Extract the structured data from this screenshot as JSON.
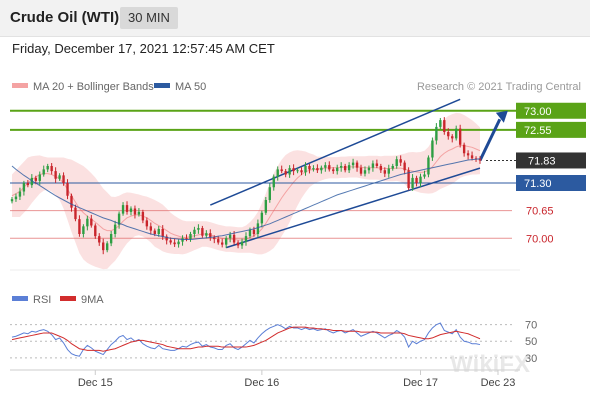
{
  "header": {
    "title": "Crude Oil (WTI)",
    "timeframe": "30 MIN"
  },
  "timestamp": "Friday, December 17, 2021 12:57:45 AM CET",
  "colors": {
    "candle_up": "#2e9e43",
    "candle_down": "#c9252c",
    "bollinger": "#f4a3a3",
    "ma50": "#2c5aa0",
    "resistance": "#5aa317",
    "support": "#2c5aa0",
    "minor": "#e06666",
    "rsi": "#5b7fd6",
    "rsi_ma": "#d22d2d",
    "channel": "#1e4a96"
  },
  "legend_top": [
    {
      "label": "MA 20 + Bollinger Bands",
      "color": "#f4a3a3"
    },
    {
      "label": "MA 50",
      "color": "#2c5aa0"
    }
  ],
  "credit": "Research © 2021 Trading Central",
  "legend_bottom": [
    {
      "label": "RSI",
      "color": "#5b7fd6"
    },
    {
      "label": "9MA",
      "color": "#d22d2d"
    }
  ],
  "watermark": "WikiFX",
  "chart_data": {
    "type": "candlestick",
    "ylim": [
      69.3,
      73.3
    ],
    "x_ticks": [
      "Dec 15",
      "Dec 16",
      "Dec 17",
      "Dec 23"
    ],
    "price_levels": [
      {
        "value": "73.00",
        "y": 73.0,
        "style": "resistance"
      },
      {
        "value": "72.55",
        "y": 72.55,
        "style": "resistance"
      },
      {
        "value": "71.83",
        "y": 71.83,
        "style": "last"
      },
      {
        "value": "71.30",
        "y": 71.3,
        "style": "support"
      },
      {
        "value": "70.65",
        "y": 70.65,
        "style": "minor"
      },
      {
        "value": "70.00",
        "y": 70.0,
        "style": "minor"
      }
    ],
    "closes": [
      70.92,
      70.98,
      71.1,
      71.3,
      71.25,
      71.42,
      71.35,
      71.5,
      71.62,
      71.7,
      71.58,
      71.4,
      71.48,
      71.3,
      71.0,
      70.72,
      70.45,
      70.1,
      70.28,
      70.46,
      70.3,
      70.05,
      69.9,
      69.72,
      69.88,
      70.1,
      70.32,
      70.58,
      70.78,
      70.62,
      70.7,
      70.56,
      70.62,
      70.42,
      70.28,
      70.18,
      70.1,
      70.22,
      70.04,
      69.95,
      69.9,
      69.86,
      69.92,
      70.0,
      69.98,
      70.1,
      70.2,
      70.24,
      70.06,
      70.12,
      70.02,
      69.98,
      69.9,
      69.85,
      70.0,
      70.08,
      69.9,
      69.83,
      69.92,
      70.05,
      70.2,
      70.1,
      70.35,
      70.6,
      70.9,
      71.2,
      71.45,
      71.62,
      71.58,
      71.5,
      71.65,
      71.58,
      71.6,
      71.55,
      71.7,
      71.62,
      71.65,
      71.6,
      71.66,
      71.72,
      71.62,
      71.58,
      71.66,
      71.7,
      71.6,
      71.72,
      71.78,
      71.66,
      71.52,
      71.6,
      71.66,
      71.76,
      71.7,
      71.6,
      71.52,
      71.64,
      71.7,
      71.86,
      71.78,
      71.6,
      71.18,
      71.42,
      71.3,
      71.45,
      71.5,
      71.9,
      72.3,
      72.62,
      72.78,
      72.5,
      72.4,
      72.35,
      72.58,
      72.2,
      72.0,
      71.95,
      71.88,
      71.86,
      71.83
    ],
    "ma50": [
      71.7,
      71.62,
      71.55,
      71.48,
      71.42,
      71.35,
      71.3,
      71.24,
      71.18,
      71.12,
      71.06,
      71.0,
      70.95,
      70.9,
      70.85,
      70.8,
      70.76,
      70.72,
      70.68,
      70.64,
      70.6,
      70.56,
      70.52,
      70.48,
      70.45,
      70.42,
      70.38,
      70.35,
      70.32,
      70.28,
      70.25,
      70.22,
      70.19,
      70.16,
      70.13,
      70.1,
      70.08,
      70.06,
      70.04,
      70.02,
      70.0,
      69.99,
      69.98,
      69.97,
      69.97,
      69.97,
      69.98,
      69.99,
      70.0,
      70.01,
      70.02,
      70.03,
      70.05,
      70.06,
      70.08,
      70.1,
      70.12,
      70.14,
      70.16,
      70.18,
      70.2,
      70.22,
      70.25,
      70.28,
      70.31,
      70.34,
      70.38,
      70.42,
      70.46,
      70.5,
      70.54,
      70.58,
      70.62,
      70.66,
      70.7,
      70.74,
      70.78,
      70.82,
      70.86,
      70.9,
      70.94,
      70.98,
      71.02,
      71.05,
      71.08,
      71.11,
      71.14,
      71.17,
      71.2,
      71.23,
      71.26,
      71.29,
      71.32,
      71.35,
      71.38,
      71.41,
      71.44,
      71.47,
      71.5,
      71.52,
      71.54,
      71.56,
      71.58,
      71.6,
      71.62,
      71.64,
      71.66,
      71.68,
      71.7,
      71.72,
      71.74,
      71.76,
      71.78,
      71.8,
      71.82,
      71.84,
      71.85,
      71.86,
      71.87
    ],
    "bollinger_mid": [
      71.0,
      71.05,
      71.1,
      71.2,
      71.3,
      71.38,
      71.44,
      71.5,
      71.52,
      71.52,
      71.5,
      71.45,
      71.4,
      71.3,
      71.15,
      71.0,
      70.85,
      70.7,
      70.6,
      70.52,
      70.45,
      70.38,
      70.3,
      70.22,
      70.18,
      70.18,
      70.22,
      70.3,
      70.4,
      70.48,
      70.52,
      70.55,
      70.55,
      70.52,
      70.48,
      70.42,
      70.35,
      70.3,
      70.24,
      70.18,
      70.12,
      70.08,
      70.05,
      70.02,
      70.02,
      70.04,
      70.06,
      70.08,
      70.1,
      70.1,
      70.08,
      70.05,
      70.02,
      70.0,
      69.98,
      69.98,
      69.97,
      69.96,
      69.96,
      69.98,
      70.02,
      70.06,
      70.12,
      70.22,
      70.35,
      70.5,
      70.65,
      70.8,
      70.95,
      71.08,
      71.2,
      71.32,
      71.42,
      71.5,
      71.56,
      71.6,
      71.62,
      71.62,
      71.64,
      71.65,
      71.66,
      71.66,
      71.66,
      71.67,
      71.67,
      71.68,
      71.68,
      71.68,
      71.67,
      71.66,
      71.66,
      71.66,
      71.66,
      71.65,
      71.64,
      71.64,
      71.64,
      71.65,
      71.65,
      71.63,
      71.6,
      71.58,
      71.56,
      71.55,
      71.56,
      71.6,
      71.68,
      71.8,
      71.92,
      72.0,
      72.06,
      72.1,
      72.15,
      72.18,
      72.18,
      72.16,
      72.14,
      72.1,
      72.06
    ],
    "bollinger_width": [
      0.5,
      0.55,
      0.6,
      0.6,
      0.6,
      0.55,
      0.5,
      0.45,
      0.4,
      0.38,
      0.4,
      0.45,
      0.5,
      0.6,
      0.72,
      0.85,
      0.95,
      1.05,
      1.1,
      1.1,
      1.08,
      1.05,
      1.0,
      0.95,
      0.9,
      0.8,
      0.75,
      0.7,
      0.65,
      0.6,
      0.55,
      0.5,
      0.48,
      0.48,
      0.5,
      0.52,
      0.55,
      0.55,
      0.55,
      0.52,
      0.48,
      0.45,
      0.42,
      0.4,
      0.38,
      0.36,
      0.34,
      0.32,
      0.3,
      0.3,
      0.3,
      0.3,
      0.3,
      0.3,
      0.3,
      0.3,
      0.3,
      0.3,
      0.3,
      0.32,
      0.36,
      0.42,
      0.5,
      0.6,
      0.7,
      0.8,
      0.88,
      0.9,
      0.9,
      0.88,
      0.82,
      0.74,
      0.65,
      0.56,
      0.48,
      0.4,
      0.35,
      0.3,
      0.28,
      0.26,
      0.25,
      0.25,
      0.25,
      0.25,
      0.25,
      0.25,
      0.25,
      0.25,
      0.26,
      0.27,
      0.28,
      0.28,
      0.28,
      0.28,
      0.3,
      0.3,
      0.3,
      0.3,
      0.32,
      0.36,
      0.42,
      0.45,
      0.46,
      0.48,
      0.5,
      0.55,
      0.62,
      0.7,
      0.76,
      0.8,
      0.82,
      0.82,
      0.8,
      0.76,
      0.72,
      0.68,
      0.64,
      0.6,
      0.55
    ],
    "rsi_ylim": [
      25,
      78
    ],
    "rsi_ticks": [
      {
        "value": "70",
        "y": 70
      },
      {
        "value": "50",
        "y": 50
      },
      {
        "value": "30",
        "y": 30
      }
    ],
    "rsi": [
      55,
      56,
      58,
      60,
      59,
      62,
      61,
      63,
      64,
      62,
      58,
      52,
      54,
      48,
      40,
      35,
      33,
      32,
      40,
      45,
      42,
      38,
      36,
      34,
      40,
      46,
      50,
      55,
      57,
      52,
      54,
      50,
      52,
      47,
      44,
      42,
      41,
      45,
      41,
      40,
      39,
      39,
      41,
      44,
      43,
      46,
      48,
      49,
      44,
      46,
      43,
      42,
      40,
      40,
      45,
      47,
      42,
      40,
      43,
      47,
      51,
      48,
      54,
      59,
      63,
      66,
      68,
      70,
      68,
      65,
      68,
      66,
      66,
      64,
      66,
      64,
      65,
      63,
      64,
      65,
      62,
      60,
      62,
      63,
      60,
      62,
      64,
      60,
      56,
      58,
      60,
      62,
      60,
      57,
      54,
      57,
      59,
      63,
      60,
      55,
      43,
      50,
      47,
      50,
      52,
      60,
      66,
      70,
      72,
      63,
      61,
      59,
      64,
      55,
      50,
      49,
      47,
      47,
      46
    ],
    "rsi_ma": [
      52,
      53,
      54,
      55,
      56,
      57,
      58,
      59,
      60,
      60,
      60,
      58,
      56,
      54,
      51,
      47,
      44,
      41,
      40,
      39,
      39,
      39,
      39,
      38,
      39,
      40,
      41,
      43,
      45,
      47,
      49,
      50,
      51,
      51,
      50,
      49,
      48,
      47,
      46,
      44,
      43,
      42,
      41,
      41,
      41,
      41,
      42,
      43,
      43,
      44,
      44,
      44,
      44,
      43,
      43,
      43,
      43,
      43,
      43,
      43,
      44,
      45,
      47,
      49,
      51,
      54,
      57,
      60,
      62,
      64,
      66,
      67,
      67,
      67,
      67,
      66,
      66,
      65,
      65,
      64,
      64,
      63,
      63,
      63,
      62,
      62,
      62,
      62,
      61,
      61,
      61,
      61,
      61,
      60,
      60,
      60,
      60,
      60,
      60,
      59,
      57,
      56,
      55,
      54,
      53,
      53,
      54,
      56,
      58,
      59,
      60,
      61,
      62,
      61,
      60,
      59,
      57,
      55,
      53
    ]
  }
}
